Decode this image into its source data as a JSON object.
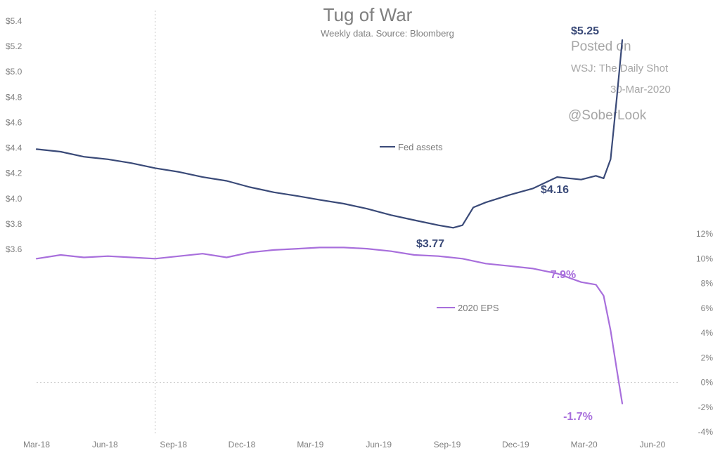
{
  "chart_data": {
    "type": "line",
    "title": "Tug of War",
    "subtitle": "Weekly data.  Source: Bloomberg",
    "watermark": {
      "line1": "Posted on",
      "line2": "WSJ: The Daily Shot",
      "line3": "30-Mar-2020",
      "line4": "@SoberLook"
    },
    "x_tick_labels": [
      "Mar-18",
      "Jun-18",
      "Sep-18",
      "Dec-18",
      "Mar-19",
      "Jun-19",
      "Sep-19",
      "Dec-19",
      "Mar-20",
      "Jun-20"
    ],
    "x_range": [
      "2018-03-01",
      "2020-06-01"
    ],
    "vertical_marker_date": "2018-08-01",
    "left_axis": {
      "ticks": [
        "$3.6",
        "$3.8",
        "$4.0",
        "$4.2",
        "$4.4",
        "$4.6",
        "$4.8",
        "$5.0",
        "$5.2",
        "$5.4"
      ],
      "ylim": [
        3.6,
        5.4
      ]
    },
    "right_axis": {
      "ticks": [
        "-4%",
        "-2%",
        "0%",
        "2%",
        "4%",
        "6%",
        "8%",
        "10%",
        "12%"
      ],
      "ylim": [
        -4,
        12
      ]
    },
    "series": [
      {
        "name": "Fed assets",
        "axis": "left",
        "color": "#3a4a78",
        "x": [
          "2018-03-01",
          "2018-04-01",
          "2018-05-01",
          "2018-06-01",
          "2018-07-01",
          "2018-08-01",
          "2018-09-01",
          "2018-10-01",
          "2018-11-01",
          "2018-12-01",
          "2019-01-01",
          "2019-02-01",
          "2019-03-01",
          "2019-04-01",
          "2019-05-01",
          "2019-06-01",
          "2019-07-01",
          "2019-08-01",
          "2019-08-20",
          "2019-09-01",
          "2019-09-15",
          "2019-10-01",
          "2019-11-01",
          "2019-12-01",
          "2020-01-01",
          "2020-02-01",
          "2020-02-20",
          "2020-03-01",
          "2020-03-10",
          "2020-03-18",
          "2020-03-25"
        ],
        "y": [
          4.39,
          4.37,
          4.33,
          4.31,
          4.28,
          4.24,
          4.21,
          4.17,
          4.14,
          4.09,
          4.05,
          4.02,
          3.99,
          3.96,
          3.92,
          3.87,
          3.83,
          3.79,
          3.77,
          3.79,
          3.93,
          3.97,
          4.03,
          4.08,
          4.17,
          4.15,
          4.18,
          4.16,
          4.31,
          4.8,
          5.25
        ]
      },
      {
        "name": "2020 EPS",
        "axis": "right",
        "color": "#a86fdc",
        "x": [
          "2018-03-01",
          "2018-04-01",
          "2018-05-01",
          "2018-06-01",
          "2018-07-01",
          "2018-08-01",
          "2018-09-01",
          "2018-10-01",
          "2018-11-01",
          "2018-12-01",
          "2019-01-01",
          "2019-02-01",
          "2019-03-01",
          "2019-04-01",
          "2019-05-01",
          "2019-06-01",
          "2019-07-01",
          "2019-08-01",
          "2019-09-01",
          "2019-10-01",
          "2019-11-01",
          "2019-12-01",
          "2020-01-01",
          "2020-02-01",
          "2020-02-20",
          "2020-03-01",
          "2020-03-10",
          "2020-03-18",
          "2020-03-25"
        ],
        "y": [
          10.0,
          10.3,
          10.1,
          10.2,
          10.1,
          10.0,
          10.2,
          10.4,
          10.1,
          10.5,
          10.7,
          10.8,
          10.9,
          10.9,
          10.8,
          10.6,
          10.3,
          10.2,
          10.0,
          9.6,
          9.4,
          9.2,
          8.8,
          8.1,
          7.9,
          7.0,
          4.2,
          1.0,
          -1.7
        ]
      }
    ],
    "legend": [
      {
        "label": "Fed assets",
        "color": "#3a4a78"
      },
      {
        "label": "2020 EPS",
        "color": "#a86fdc"
      }
    ],
    "annotations": [
      {
        "text": "$5.25",
        "series": "Fed assets",
        "x": "2020-03-25",
        "y": 5.25
      },
      {
        "text": "$4.16",
        "series": "Fed assets",
        "x": "2020-03-01",
        "y": 4.16
      },
      {
        "text": "$3.77",
        "series": "Fed assets",
        "x": "2019-08-20",
        "y": 3.77
      },
      {
        "text": "7.9%",
        "series": "2020 EPS",
        "x": "2020-02-20",
        "y": 7.9
      },
      {
        "text": "-1.7%",
        "series": "2020 EPS",
        "x": "2020-03-25",
        "y": -1.7
      }
    ],
    "grid": false
  }
}
